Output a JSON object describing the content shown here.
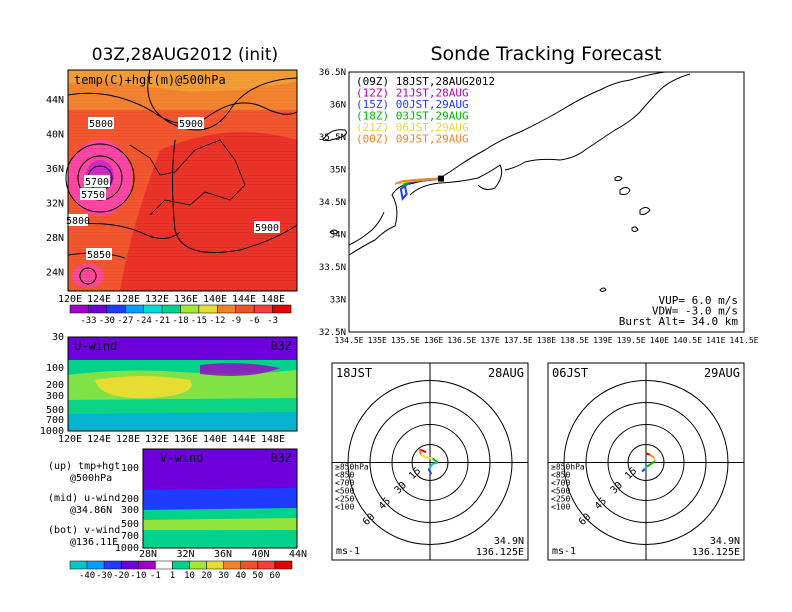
{
  "left": {
    "title": "03Z,28AUG2012 (init)",
    "map_label": "temp(C)+hgt(m)@500hPa",
    "map_lon_ticks": [
      "120E",
      "124E",
      "128E",
      "132E",
      "136E",
      "140E",
      "144E",
      "148E"
    ],
    "map_lat_ticks": [
      "44N",
      "40N",
      "36N",
      "32N",
      "28N",
      "24N"
    ],
    "contour_labels": [
      "5800",
      "5900",
      "5700",
      "5750",
      "5800",
      "5850",
      "5900",
      "5850",
      "5850"
    ],
    "temp_colorbar": {
      "labels": [
        "-33",
        "-30",
        "-27",
        "-24",
        "-21",
        "-18",
        "-15",
        "-12",
        "-9",
        "-6",
        "-3"
      ],
      "colors": [
        "#a000c8",
        "#6e00dc",
        "#1e3cff",
        "#00a0ff",
        "#00dcdc",
        "#00d28c",
        "#a0e632",
        "#e6dc32",
        "#f08228",
        "#f05028",
        "#fa3c3c",
        "#e60000"
      ]
    },
    "uwind": {
      "title": "U-wind",
      "time": "03Z",
      "y_ticks": [
        "30",
        "100",
        "200",
        "300",
        "500",
        "700",
        "1000"
      ],
      "x_ticks": [
        "120E",
        "124E",
        "128E",
        "132E",
        "136E",
        "140E",
        "144E",
        "148E"
      ]
    },
    "vwind": {
      "title": "V-wind",
      "time": "03Z",
      "y_ticks": [
        "100",
        "200",
        "300",
        "500",
        "700",
        "1000"
      ],
      "x_ticks": [
        "28N",
        "32N",
        "36N",
        "40N",
        "44N"
      ]
    },
    "legend_notes": [
      {
        "label": "(up) tmp+hgt",
        "sub": "@500hPa"
      },
      {
        "label": "(mid) u-wind",
        "sub": "@34.86N"
      },
      {
        "label": "(bot) v-wind",
        "sub": "@136.11E"
      }
    ],
    "wind_colorbar": {
      "labels": [
        "-40",
        "-30",
        "-20",
        "-10",
        "-1",
        "1",
        "10",
        "20",
        "30",
        "40",
        "50",
        "60"
      ],
      "colors": [
        "#00c8c8",
        "#00a0ff",
        "#1e3cff",
        "#6e00dc",
        "#a000c8",
        "#ffffff",
        "#00d28c",
        "#a0e632",
        "#e6dc32",
        "#f08228",
        "#f05028",
        "#fa3c3c",
        "#e60000"
      ]
    }
  },
  "chart_data": [
    {
      "type": "line",
      "title": "Sonde Tracking Forecast",
      "xlim": [
        134.5,
        141.5
      ],
      "ylim": [
        32.5,
        36.5
      ],
      "x_ticks": [
        "134.5E",
        "135E",
        "135.5E",
        "136E",
        "136.5E",
        "137E",
        "137.5E",
        "138E",
        "138.5E",
        "139E",
        "139.5E",
        "140E",
        "140.5E",
        "141E",
        "141.5E"
      ],
      "y_ticks": [
        "36.5N",
        "36N",
        "35.5N",
        "35N",
        "34.5N",
        "34N",
        "33.5N",
        "33N",
        "32.5N"
      ],
      "series": [
        {
          "name": "(09Z) 18JST,28AUG2012",
          "color": "#000000",
          "points": [
            [
              136.13,
              34.86
            ],
            [
              136.0,
              34.85
            ],
            [
              135.8,
              34.83
            ],
            [
              135.62,
              34.82
            ],
            [
              135.5,
              34.78
            ]
          ]
        },
        {
          "name": "(12Z) 21JST,28AUG",
          "color": "#b400b4",
          "points": [
            [
              136.13,
              34.86
            ],
            [
              135.95,
              34.84
            ],
            [
              135.75,
              34.83
            ],
            [
              135.55,
              34.8
            ]
          ]
        },
        {
          "name": "(15Z) 00JST,29AUG",
          "color": "#1e3cff",
          "points": [
            [
              136.13,
              34.86
            ],
            [
              135.9,
              34.84
            ],
            [
              135.6,
              34.82
            ],
            [
              135.42,
              34.7
            ],
            [
              135.45,
              34.55
            ],
            [
              135.52,
              34.62
            ],
            [
              135.48,
              34.8
            ]
          ]
        },
        {
          "name": "(18Z) 03JST,29AUG",
          "color": "#00b400",
          "points": [
            [
              136.13,
              34.86
            ],
            [
              135.85,
              34.85
            ],
            [
              135.6,
              34.83
            ],
            [
              135.45,
              34.75
            ]
          ]
        },
        {
          "name": "(21Z) 06JST,29AUG",
          "color": "#e6dc32",
          "points": [
            [
              136.13,
              34.86
            ],
            [
              135.8,
              34.84
            ],
            [
              135.55,
              34.82
            ],
            [
              135.38,
              34.78
            ]
          ]
        },
        {
          "name": "(00Z) 09JST,29AUG",
          "color": "#f08228",
          "points": [
            [
              136.13,
              34.86
            ],
            [
              135.7,
              34.84
            ],
            [
              135.45,
              34.82
            ],
            [
              135.32,
              34.78
            ]
          ]
        }
      ],
      "annotations": [
        "VUP= 6.0 m/s",
        "VDW= -3.0 m/s",
        "Burst Alt= 34.0 km"
      ]
    },
    {
      "type": "scatter",
      "title_left": "18JST",
      "title_right": "28AUG",
      "levels": [
        "≥850hPa",
        "<850",
        "<700",
        "<500",
        "<250",
        "<100"
      ],
      "level_colors": [
        "#e60000",
        "#f08228",
        "#e6dc32",
        "#00b400",
        "#00c8c8",
        "#1e3cff"
      ],
      "ring_labels": [
        "15",
        "30",
        "45",
        "60"
      ],
      "units": "ms-1",
      "location": [
        "34.9N",
        "136.125E"
      ],
      "hodograph": [
        [
          -3,
          8
        ],
        [
          -8,
          10
        ],
        [
          -7,
          6
        ],
        [
          -3,
          4
        ],
        [
          2,
          3
        ],
        [
          6,
          0
        ],
        [
          2,
          -1
        ],
        [
          -1,
          -5
        ],
        [
          1,
          -9
        ]
      ]
    },
    {
      "type": "scatter",
      "title_left": "06JST",
      "title_right": "29AUG",
      "levels": [
        "≥850hPa",
        "<850",
        "<700",
        "<500",
        "<250",
        "<100"
      ],
      "level_colors": [
        "#e60000",
        "#f08228",
        "#e6dc32",
        "#00b400",
        "#00c8c8",
        "#1e3cff"
      ],
      "ring_labels": [
        "15",
        "30",
        "45",
        "60"
      ],
      "units": "ms-1",
      "location": [
        "34.9N",
        "136.125E"
      ],
      "hodograph": [
        [
          0,
          7
        ],
        [
          3,
          6
        ],
        [
          6,
          4
        ],
        [
          7,
          1
        ],
        [
          4,
          -1
        ],
        [
          1,
          -3
        ],
        [
          -1,
          -5
        ],
        [
          -3,
          -7
        ]
      ]
    }
  ]
}
